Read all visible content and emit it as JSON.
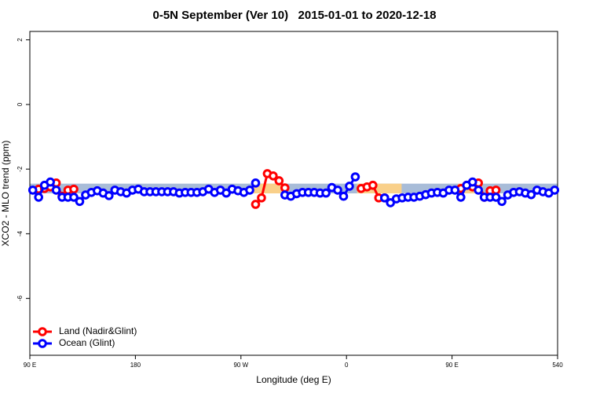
{
  "chart_data": {
    "type": "line",
    "title": "0-5N September (Ver 10)   2015-01-01 to 2020-12-18",
    "x_label": "Longitude (deg E)",
    "y_label": "XCO2 - MLO trend (ppm)",
    "xlim": [
      90,
      540
    ],
    "xticks": [
      {
        "value": 90,
        "label": "90 E"
      },
      180,
      {
        "value": 270,
        "label": "90 W"
      },
      {
        "value": 360,
        "label": "0"
      },
      {
        "value": 450,
        "label": "90 E"
      },
      540
    ],
    "ylim": [
      -7.76,
      2.26
    ],
    "yticks": [
      2,
      0,
      -2,
      -4,
      -6
    ],
    "legend": "bottom-left",
    "band": {
      "lower": -2.75,
      "upper": -2.45,
      "color": "#a8bcd8"
    },
    "highlights": [
      {
        "x": [
          280,
          307
        ],
        "color": "#f9d08a"
      },
      {
        "x": [
          369,
          407
        ],
        "color": "#f9d08a"
      },
      {
        "x": [
          455,
          476
        ],
        "color": "#f9d08a"
      }
    ],
    "x": [
      92.5,
      97.5,
      102.5,
      107.5,
      112.5,
      117.5,
      122.5,
      127.5,
      132.5,
      137.5,
      142.5,
      147.5,
      152.5,
      157.5,
      162.5,
      167.5,
      172.5,
      177.5,
      182.5,
      187.5,
      192.5,
      197.5,
      202.5,
      207.5,
      212.5,
      217.5,
      222.5,
      227.5,
      232.5,
      237.5,
      242.5,
      247.5,
      252.5,
      257.5,
      262.5,
      267.5,
      272.5,
      277.5,
      282.5,
      287.5,
      292.5,
      297.5,
      302.5,
      307.5,
      312.5,
      317.5,
      322.5,
      327.5,
      332.5,
      337.5,
      342.5,
      347.5,
      352.5,
      357.5,
      362.5,
      367.5,
      372.5,
      377.5,
      382.5,
      387.5,
      392.5,
      397.5,
      402.5,
      407.5,
      412.5,
      417.5,
      422.5,
      427.5,
      432.5,
      437.5,
      442.5,
      447.5,
      452.5,
      457.5,
      462.5,
      467.5,
      472.5,
      477.5,
      482.5,
      487.5,
      492.5,
      497.5,
      502.5,
      507.5,
      512.5,
      517.5,
      522.5,
      527.5,
      532.5,
      537.5
    ],
    "series": [
      {
        "name": "Land (Nadir&Glint)",
        "color": "#ff0000",
        "values": [
          null,
          -2.62,
          -2.6,
          -2.55,
          -2.43,
          -2.84,
          -2.65,
          -2.62,
          null,
          null,
          null,
          null,
          null,
          null,
          null,
          null,
          null,
          null,
          null,
          null,
          null,
          null,
          null,
          null,
          null,
          null,
          null,
          null,
          null,
          null,
          null,
          null,
          null,
          null,
          null,
          null,
          null,
          null,
          -3.09,
          -2.89,
          -2.14,
          -2.21,
          -2.36,
          -2.58,
          null,
          null,
          null,
          null,
          null,
          null,
          null,
          null,
          null,
          null,
          null,
          null,
          -2.6,
          -2.55,
          -2.5,
          -2.89,
          -2.89,
          null,
          null,
          null,
          null,
          null,
          null,
          null,
          null,
          null,
          null,
          null,
          null,
          -2.6,
          -2.5,
          -2.55,
          -2.43,
          -2.87,
          -2.67,
          -2.65,
          null,
          null,
          null,
          null,
          null,
          null,
          null,
          null,
          null,
          null
        ]
      },
      {
        "name": "Ocean (Glint)",
        "color": "#0000ff",
        "values": [
          -2.65,
          -2.87,
          -2.5,
          -2.4,
          -2.65,
          -2.87,
          -2.87,
          -2.87,
          -3.0,
          -2.8,
          -2.72,
          -2.67,
          -2.74,
          -2.82,
          -2.65,
          -2.7,
          -2.74,
          -2.65,
          -2.62,
          -2.7,
          -2.7,
          -2.7,
          -2.7,
          -2.7,
          -2.7,
          -2.74,
          -2.72,
          -2.72,
          -2.72,
          -2.7,
          -2.62,
          -2.72,
          -2.65,
          -2.74,
          -2.62,
          -2.67,
          -2.72,
          -2.65,
          -2.43,
          null,
          null,
          null,
          null,
          -2.8,
          -2.84,
          -2.76,
          -2.72,
          -2.72,
          -2.72,
          -2.74,
          -2.74,
          -2.57,
          -2.65,
          -2.84,
          -2.53,
          -2.24,
          null,
          null,
          null,
          null,
          -2.89,
          -3.04,
          -2.92,
          -2.89,
          -2.87,
          -2.87,
          -2.84,
          -2.79,
          -2.74,
          -2.72,
          -2.74,
          -2.65,
          -2.65,
          -2.87,
          -2.5,
          -2.4,
          -2.65,
          -2.87,
          -2.87,
          -2.87,
          -3.0,
          -2.8,
          -2.72,
          -2.7,
          -2.74,
          -2.79,
          -2.65,
          -2.7,
          -2.74,
          -2.65
        ]
      }
    ]
  }
}
